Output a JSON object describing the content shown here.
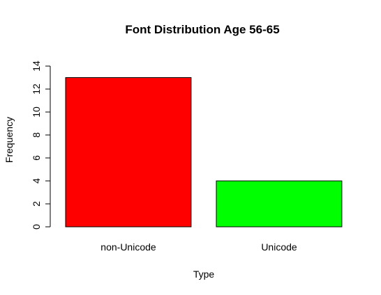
{
  "chart_data": {
    "type": "bar",
    "title": "Font Distribution Age 56-65",
    "xlabel": "Type",
    "ylabel": "Frequency",
    "categories": [
      "non-Unicode",
      "Unicode"
    ],
    "values": [
      13,
      4
    ],
    "colors": [
      "#ff0000",
      "#00ff00"
    ],
    "ylim": [
      0,
      14
    ],
    "yticks": [
      0,
      2,
      4,
      6,
      8,
      10,
      12,
      14
    ],
    "grid": false,
    "legend": "none"
  }
}
